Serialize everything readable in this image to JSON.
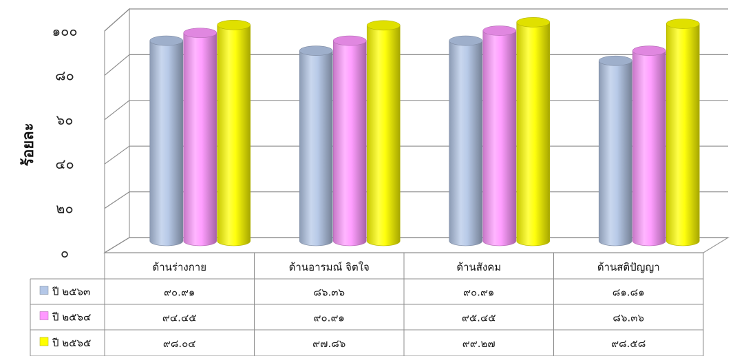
{
  "chart_data": {
    "type": "bar",
    "ylabel": "ร้อยละ",
    "ylim": [
      0,
      100
    ],
    "yticks": [
      "๐",
      "๒๐",
      "๔๐",
      "๖๐",
      "๘๐",
      "๑๐๐"
    ],
    "categories": [
      "ด้านร่างกาย",
      "ด้านอารมณ์ จิตใจ",
      "ด้านสังคม",
      "ด้านสติปัญญา"
    ],
    "series": [
      {
        "name": "ปี ๒๕๖๓",
        "color": "#B4C7E7",
        "values": [
          90.91,
          86.36,
          90.91,
          81.81
        ],
        "labels": [
          "๙๐.๙๑",
          "๘๖.๓๖",
          "๙๐.๙๑",
          "๘๑.๘๑"
        ]
      },
      {
        "name": "ปี ๒๕๖๔",
        "color": "#FF99FF",
        "values": [
          94.45,
          90.91,
          95.45,
          86.36
        ],
        "labels": [
          "๙๔.๔๕",
          "๙๐.๙๑",
          "๙๕.๔๕",
          "๘๖.๓๖"
        ]
      },
      {
        "name": "ปี ๒๕๖๕",
        "color": "#FFFF00",
        "values": [
          98.04,
          97.86,
          99.27,
          98.58
        ],
        "labels": [
          "๙๘.๐๔",
          "๙๗.๘๖",
          "๙๙.๒๗",
          "๙๘.๕๘"
        ]
      }
    ],
    "grid": true,
    "legend": "table-left"
  }
}
